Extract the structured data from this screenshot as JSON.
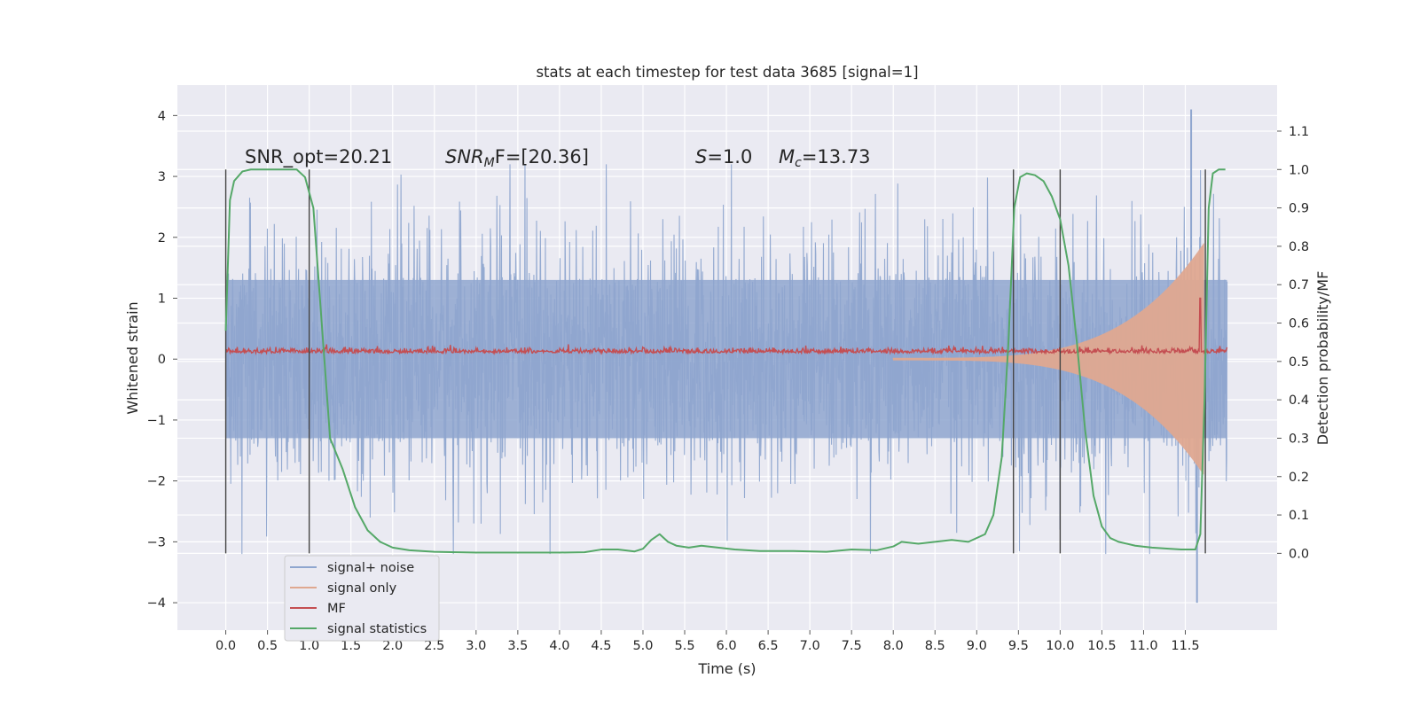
{
  "chart_data": {
    "type": "line",
    "title": "stats at each timestep for test data 3685 [signal=1]",
    "xlabel": "Time (s)",
    "ylabel": "Whitened strain",
    "y2label": "Detection probability/MF",
    "xlim": [
      -0.58,
      12.6
    ],
    "ylim": [
      -4.45,
      4.5
    ],
    "y2lim": [
      -0.2,
      1.22
    ],
    "x_ticks": [
      "0.0",
      "0.5",
      "1.0",
      "1.5",
      "2.0",
      "2.5",
      "3.0",
      "3.5",
      "4.0",
      "4.5",
      "5.0",
      "5.5",
      "6.0",
      "6.5",
      "7.0",
      "7.5",
      "8.0",
      "8.5",
      "9.0",
      "9.5",
      "10.0",
      "10.5",
      "11.0",
      "11.5"
    ],
    "y_ticks": [
      "4",
      "3",
      "2",
      "1",
      "0",
      "−1",
      "−2",
      "−3",
      "−4"
    ],
    "y2_ticks": [
      "1.1",
      "1.0",
      "0.9",
      "0.8",
      "0.7",
      "0.6",
      "0.5",
      "0.4",
      "0.3",
      "0.2",
      "0.1",
      "0.0"
    ],
    "grid": true,
    "legend_position": "lower-left",
    "annotations": {
      "snr_opt": "SNR_opt=20.21",
      "snr_mf_prefix": "SNR",
      "snr_mf_sub": "M",
      "snr_mf_suffix": "F=[20.36]",
      "s_label": "S",
      "s_value": "=1.0",
      "mc_label": "M",
      "mc_sub": "c",
      "mc_value": "=13.73"
    },
    "vertical_lines_x": [
      0.0,
      1.0,
      9.44,
      10.0,
      11.74
    ],
    "series": [
      {
        "name": "signal+ noise",
        "color": "#8fa6cf",
        "axis": "left",
        "description_values": {
          "x_range": [
            0.0,
            12.0
          ],
          "band": [
            -1.3,
            1.3
          ],
          "peak_max": 4.1,
          "peak_min": -4.0
        }
      },
      {
        "name": "signal only",
        "color": "#dfa890",
        "axis": "left",
        "chirp": {
          "x_start": 8.0,
          "x_end": 11.72,
          "amp_start": 0.02,
          "amp_end": 1.9
        }
      },
      {
        "name": "MF",
        "color": "#c44e52",
        "axis": "left",
        "baseline": 0.1,
        "spike": {
          "x": 11.68,
          "value": 1.0
        }
      },
      {
        "name": "signal statistics",
        "color": "#55a868",
        "axis": "right",
        "x": [
          0.0,
          0.05,
          0.1,
          0.2,
          0.3,
          0.5,
          0.7,
          0.85,
          0.95,
          1.05,
          1.15,
          1.25,
          1.4,
          1.55,
          1.7,
          1.85,
          2.0,
          2.2,
          2.5,
          3.0,
          3.5,
          4.0,
          4.3,
          4.5,
          4.7,
          4.9,
          5.0,
          5.1,
          5.2,
          5.3,
          5.4,
          5.55,
          5.7,
          5.9,
          6.1,
          6.4,
          6.8,
          7.2,
          7.5,
          7.8,
          8.0,
          8.1,
          8.3,
          8.5,
          8.7,
          8.9,
          9.1,
          9.2,
          9.3,
          9.38,
          9.45,
          9.52,
          9.6,
          9.7,
          9.8,
          9.9,
          10.0,
          10.1,
          10.2,
          10.3,
          10.4,
          10.5,
          10.6,
          10.7,
          10.9,
          11.1,
          11.3,
          11.45,
          11.55,
          11.62,
          11.68,
          11.73,
          11.78,
          11.83,
          11.9,
          11.95,
          11.98
        ],
        "values": [
          0.58,
          0.92,
          0.97,
          0.995,
          1.0,
          1.0,
          1.0,
          1.0,
          0.98,
          0.9,
          0.6,
          0.3,
          0.22,
          0.12,
          0.06,
          0.03,
          0.015,
          0.008,
          0.004,
          0.002,
          0.002,
          0.002,
          0.003,
          0.01,
          0.01,
          0.005,
          0.012,
          0.035,
          0.05,
          0.03,
          0.02,
          0.015,
          0.02,
          0.015,
          0.01,
          0.006,
          0.006,
          0.004,
          0.01,
          0.008,
          0.018,
          0.03,
          0.025,
          0.03,
          0.035,
          0.03,
          0.05,
          0.1,
          0.25,
          0.55,
          0.9,
          0.98,
          0.99,
          0.985,
          0.97,
          0.93,
          0.87,
          0.75,
          0.55,
          0.32,
          0.15,
          0.07,
          0.04,
          0.03,
          0.02,
          0.015,
          0.012,
          0.01,
          0.01,
          0.01,
          0.05,
          0.4,
          0.9,
          0.99,
          1.0,
          1.0,
          1.0
        ]
      }
    ]
  }
}
